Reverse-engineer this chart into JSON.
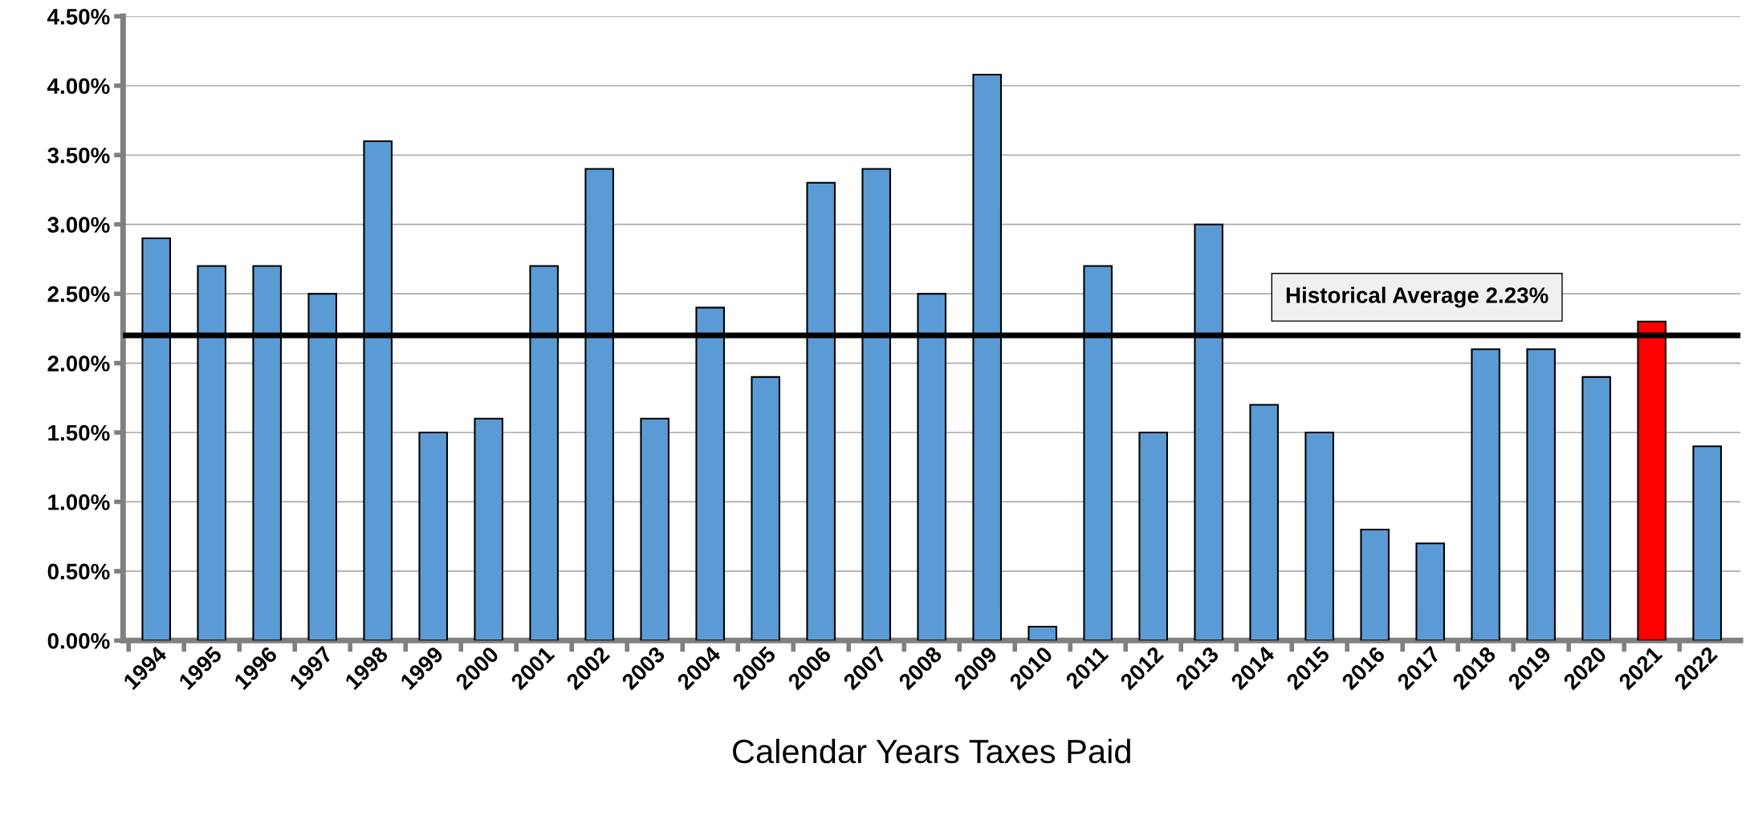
{
  "chart_data": {
    "type": "bar",
    "xlabel": "Calendar Years Taxes Paid",
    "categories": [
      "1994",
      "1995",
      "1996",
      "1997",
      "1998",
      "1999",
      "2000",
      "2001",
      "2002",
      "2003",
      "2004",
      "2005",
      "2006",
      "2007",
      "2008",
      "2009",
      "2010",
      "2011",
      "2012",
      "2013",
      "2014",
      "2015",
      "2016",
      "2017",
      "2018",
      "2019",
      "2020",
      "2021",
      "2022"
    ],
    "values": [
      2.9,
      2.7,
      2.7,
      2.5,
      3.6,
      1.5,
      1.6,
      2.7,
      3.4,
      1.6,
      2.4,
      1.9,
      3.3,
      3.4,
      2.5,
      4.08,
      0.1,
      2.7,
      1.5,
      3.0,
      1.7,
      1.5,
      0.8,
      0.7,
      2.1,
      2.1,
      1.9,
      2.3,
      1.4
    ],
    "colors": [
      "#5b9bd5",
      "#5b9bd5",
      "#5b9bd5",
      "#5b9bd5",
      "#5b9bd5",
      "#5b9bd5",
      "#5b9bd5",
      "#5b9bd5",
      "#5b9bd5",
      "#5b9bd5",
      "#5b9bd5",
      "#5b9bd5",
      "#5b9bd5",
      "#5b9bd5",
      "#5b9bd5",
      "#5b9bd5",
      "#5b9bd5",
      "#5b9bd5",
      "#5b9bd5",
      "#5b9bd5",
      "#5b9bd5",
      "#5b9bd5",
      "#5b9bd5",
      "#5b9bd5",
      "#5b9bd5",
      "#5b9bd5",
      "#5b9bd5",
      "#ff0000",
      "#5b9bd5"
    ],
    "ylim": [
      0,
      4.5
    ],
    "yticks": [
      {
        "value": 0,
        "label": "0.00%"
      },
      {
        "value": 0.5,
        "label": "0.50%"
      },
      {
        "value": 1,
        "label": "1.00%"
      },
      {
        "value": 1.5,
        "label": "1.50%"
      },
      {
        "value": 2,
        "label": "2.00%"
      },
      {
        "value": 2.5,
        "label": "2.50%"
      },
      {
        "value": 3,
        "label": "3.00%"
      },
      {
        "value": 3.5,
        "label": "3.50%"
      },
      {
        "value": 4,
        "label": "4.00%"
      },
      {
        "value": 4.5,
        "label": "4.50%"
      }
    ],
    "ref_lines": [
      {
        "axis": "y",
        "value": 2.2,
        "label": "Historical Average 2.23%",
        "color": "#000000"
      }
    ],
    "grid": "y"
  }
}
